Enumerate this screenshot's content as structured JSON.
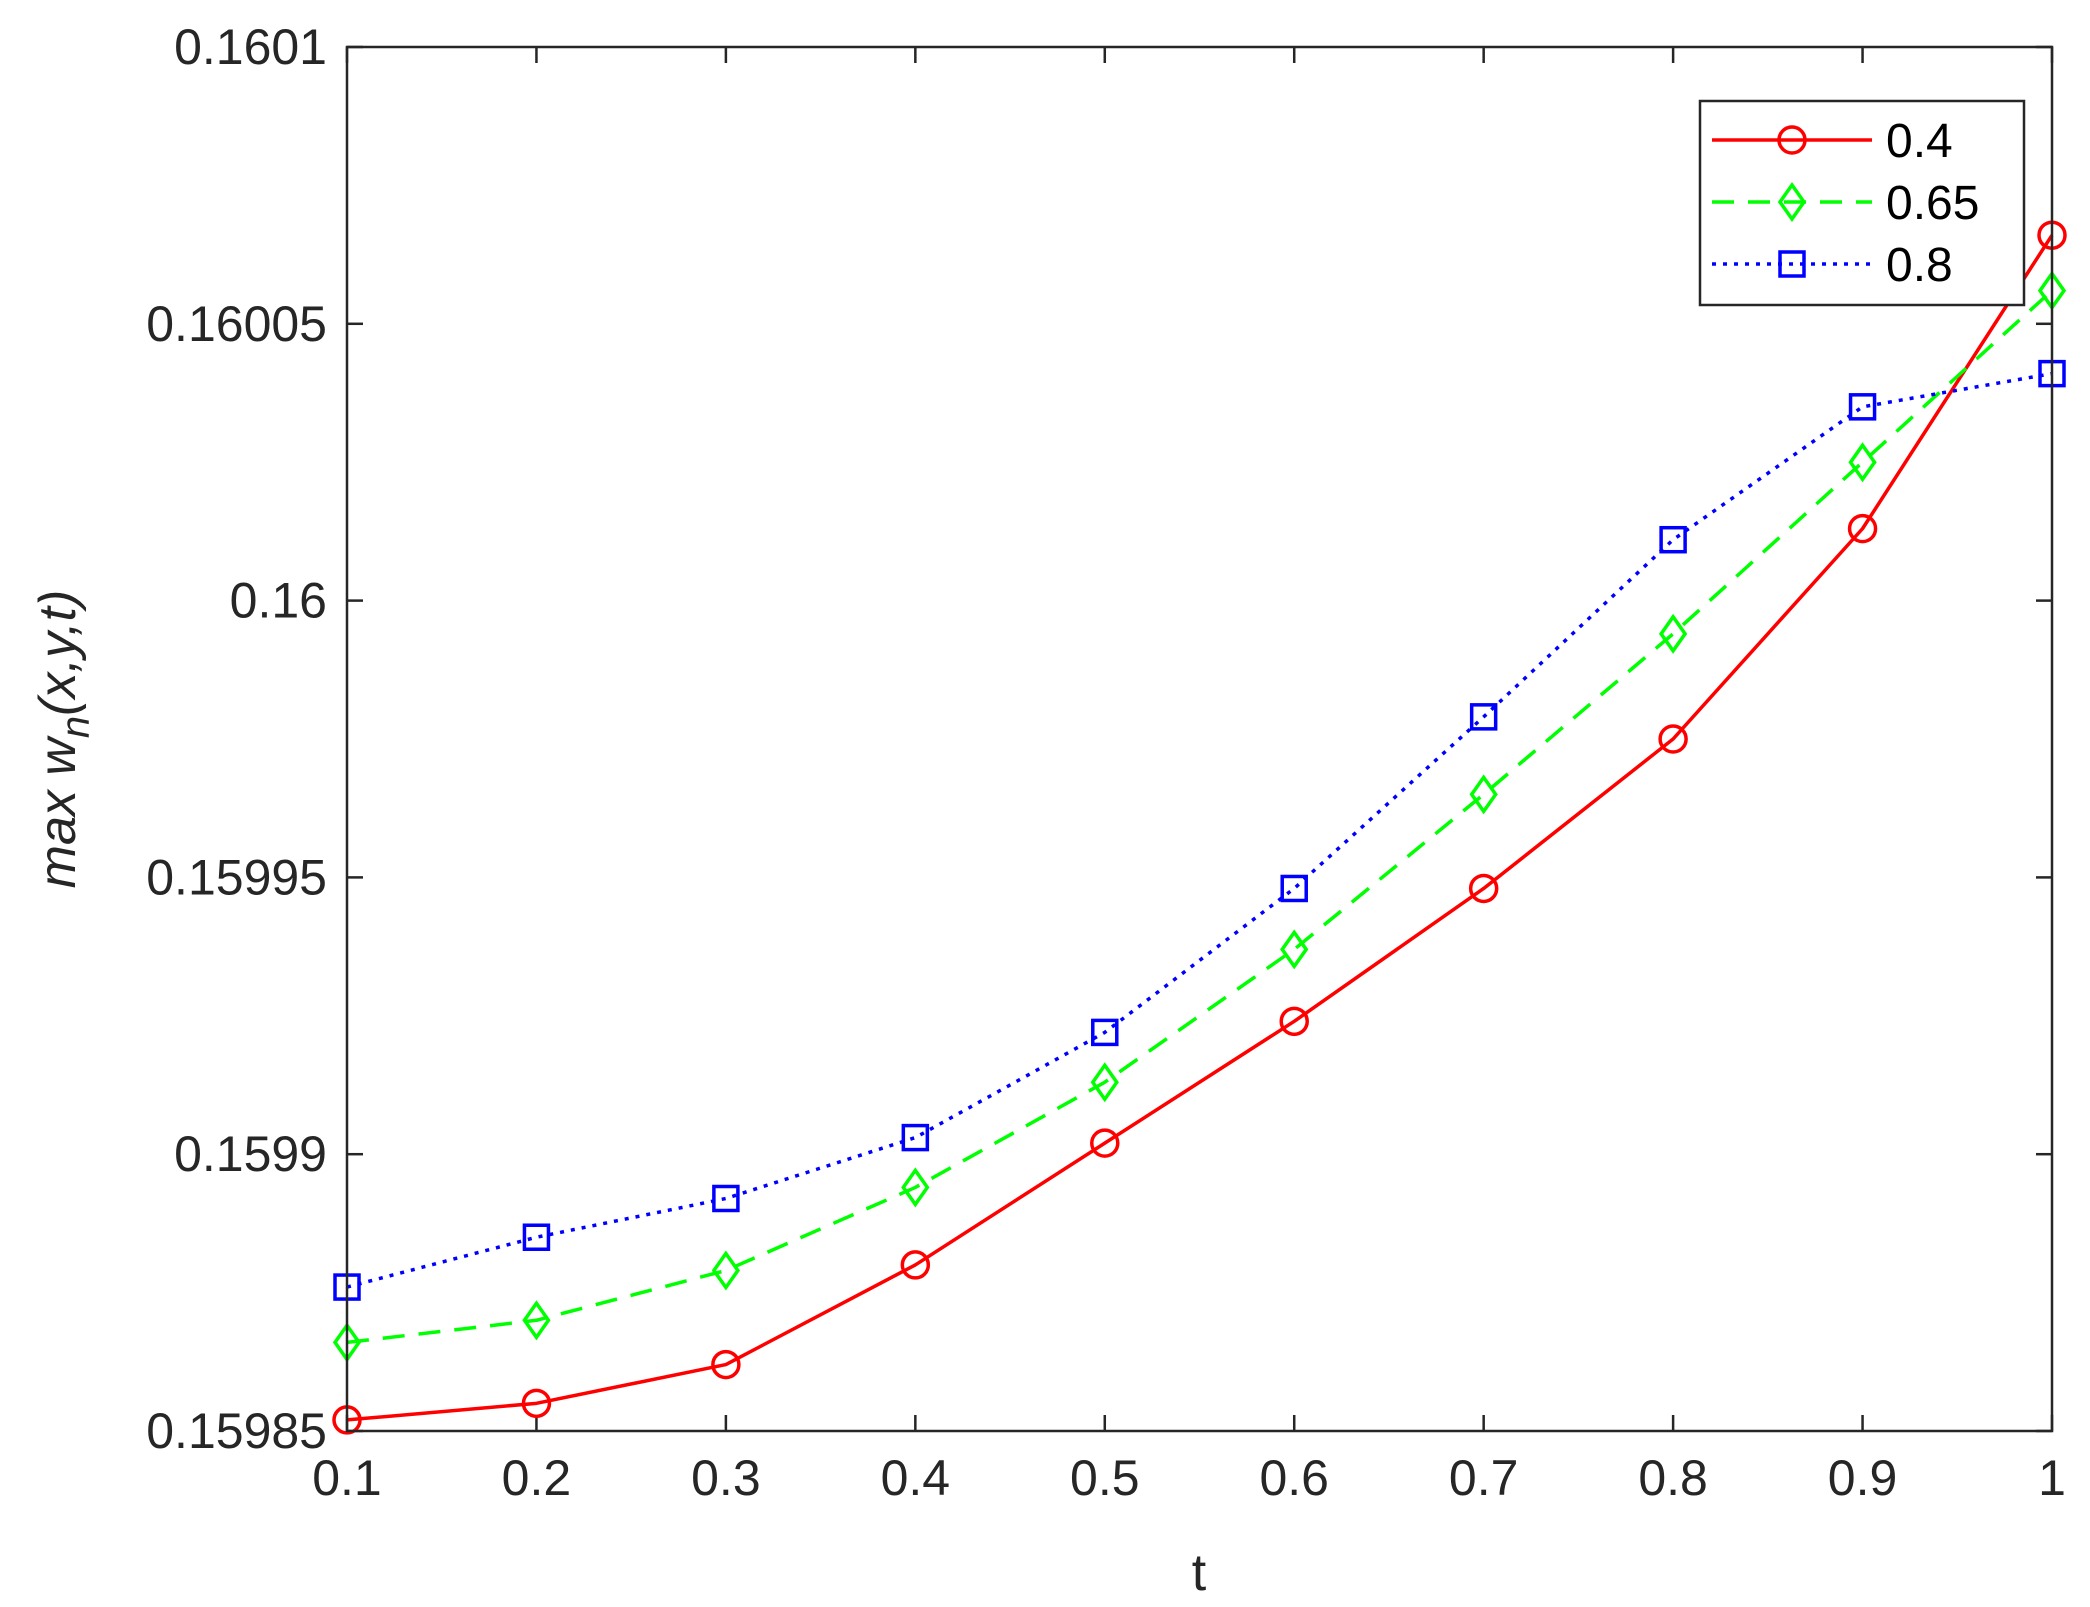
{
  "chart_data": {
    "type": "line",
    "xlabel": "t",
    "ylabel": {
      "prefix": "max w",
      "subscript": "n",
      "suffix": "(x,y,t)"
    },
    "xlim": [
      0.1,
      1
    ],
    "ylim": [
      0.15985,
      0.1601
    ],
    "x": [
      0.1,
      0.2,
      0.3,
      0.4,
      0.5,
      0.6,
      0.7,
      0.8,
      0.9,
      1.0
    ],
    "xticks": [
      {
        "value": 0.1,
        "label": "0.1"
      },
      {
        "value": 0.2,
        "label": "0.2"
      },
      {
        "value": 0.3,
        "label": "0.3"
      },
      {
        "value": 0.4,
        "label": "0.4"
      },
      {
        "value": 0.5,
        "label": "0.5"
      },
      {
        "value": 0.6,
        "label": "0.6"
      },
      {
        "value": 0.7,
        "label": "0.7"
      },
      {
        "value": 0.8,
        "label": "0.8"
      },
      {
        "value": 0.9,
        "label": "0.9"
      },
      {
        "value": 1.0,
        "label": "1"
      }
    ],
    "yticks": [
      {
        "value": 0.15985,
        "label": "0.15985"
      },
      {
        "value": 0.1599,
        "label": "0.1599"
      },
      {
        "value": 0.15995,
        "label": "0.15995"
      },
      {
        "value": 0.16,
        "label": "0.16"
      },
      {
        "value": 0.16005,
        "label": "0.16005"
      },
      {
        "value": 0.1601,
        "label": "0.1601"
      }
    ],
    "grid": false,
    "legend": "top-right",
    "series": [
      {
        "name": "0.4",
        "color": "#ff0000",
        "line": "solid",
        "marker": "circle",
        "values": [
          0.159852,
          0.159855,
          0.159862,
          0.15988,
          0.159902,
          0.159924,
          0.159948,
          0.159975,
          0.160013,
          0.160066
        ]
      },
      {
        "name": "0.65",
        "color": "#00ff00",
        "line": "dashed",
        "marker": "diamond",
        "values": [
          0.159866,
          0.15987,
          0.159879,
          0.159894,
          0.159913,
          0.159937,
          0.159965,
          0.159994,
          0.160025,
          0.160056
        ]
      },
      {
        "name": "0.8",
        "color": "#0000ff",
        "line": "dotted",
        "marker": "square",
        "values": [
          0.159876,
          0.159885,
          0.159892,
          0.159903,
          0.159922,
          0.159948,
          0.159979,
          0.160011,
          0.160035,
          0.160041
        ]
      }
    ]
  }
}
